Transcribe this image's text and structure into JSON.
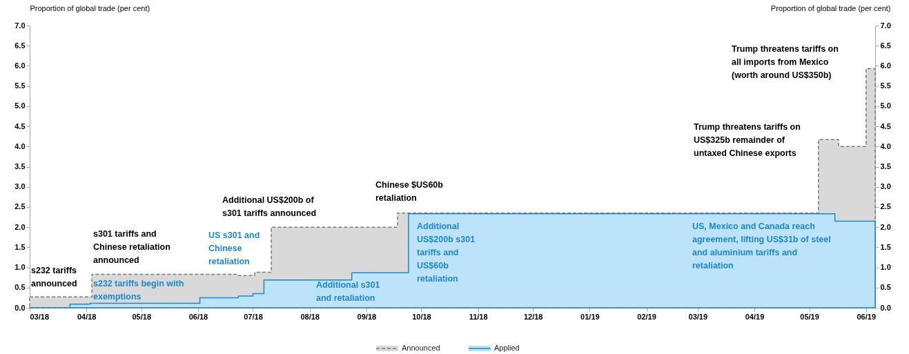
{
  "chart_data": {
    "type": "area",
    "ylabel": "Proportion of global trade (per cent)",
    "y2label": "Proportion of global trade (per cent)",
    "xlim": [
      "2018-03-01",
      "2019-06-06"
    ],
    "xticks": [
      {
        "value": "2018-03-01",
        "label": "03/18"
      },
      {
        "value": "2018-04-01",
        "label": "04/18"
      },
      {
        "value": "2018-05-01",
        "label": "05/18"
      },
      {
        "value": "2018-06-01",
        "label": "06/18"
      },
      {
        "value": "2018-07-01",
        "label": "07/18"
      },
      {
        "value": "2018-08-01",
        "label": "08/18"
      },
      {
        "value": "2018-09-01",
        "label": "09/18"
      },
      {
        "value": "2018-10-01",
        "label": "10/18"
      },
      {
        "value": "2018-11-01",
        "label": "11/18"
      },
      {
        "value": "2018-12-01",
        "label": "12/18"
      },
      {
        "value": "2019-01-01",
        "label": "01/19"
      },
      {
        "value": "2019-02-01",
        "label": "02/19"
      },
      {
        "value": "2019-03-01",
        "label": "03/19"
      },
      {
        "value": "2019-04-01",
        "label": "04/19"
      },
      {
        "value": "2019-05-01",
        "label": "05/19"
      },
      {
        "value": "2019-06-01",
        "label": "06/19"
      }
    ],
    "ylim": [
      0,
      7
    ],
    "yticks": [
      {
        "value": 0,
        "label": "0.0"
      },
      {
        "value": 0.5,
        "label": "0.5"
      },
      {
        "value": 1,
        "label": "1.0"
      },
      {
        "value": 1.5,
        "label": "1.5"
      },
      {
        "value": 2,
        "label": "2.0"
      },
      {
        "value": 2.5,
        "label": "2.5"
      },
      {
        "value": 3,
        "label": "3.0"
      },
      {
        "value": 3.5,
        "label": "3.5"
      },
      {
        "value": 4,
        "label": "4.0"
      },
      {
        "value": 4.5,
        "label": "4.5"
      },
      {
        "value": 5,
        "label": "5.0"
      },
      {
        "value": 5.5,
        "label": "5.5"
      },
      {
        "value": 6,
        "label": "6.0"
      },
      {
        "value": 6.5,
        "label": "6.5"
      },
      {
        "value": 7,
        "label": "7.0"
      }
    ],
    "y2lim": [
      0,
      7
    ],
    "y2ticks": [
      {
        "value": 0,
        "label": "0.0"
      },
      {
        "value": 0.5,
        "label": "0.5"
      },
      {
        "value": 1,
        "label": "1.0"
      },
      {
        "value": 1.5,
        "label": "1.5"
      },
      {
        "value": 2,
        "label": "2.0"
      },
      {
        "value": 2.5,
        "label": "2.5"
      },
      {
        "value": 3,
        "label": "3.0"
      },
      {
        "value": 3.5,
        "label": "3.5"
      },
      {
        "value": 4,
        "label": "4.0"
      },
      {
        "value": 4.5,
        "label": "4.5"
      },
      {
        "value": 5,
        "label": "5.0"
      },
      {
        "value": 5.5,
        "label": "5.5"
      },
      {
        "value": 6,
        "label": "6.0"
      },
      {
        "value": 6.5,
        "label": "6.5"
      },
      {
        "value": 7,
        "label": "7.0"
      }
    ],
    "legend": "bottom",
    "series": [
      {
        "name": "Announced",
        "line_style": "dashed",
        "color": "#d9d9d9",
        "x": [
          "2018-03-01",
          "2018-04-04",
          "2018-06-22",
          "2018-07-02",
          "2018-07-11",
          "2018-09-18",
          "2019-05-06",
          "2019-05-17",
          "2019-06-01",
          "2019-06-06"
        ],
        "values": [
          0.27,
          0.83,
          0.8,
          0.88,
          2.0,
          2.35,
          4.17,
          4.0,
          5.93,
          5.93
        ]
      },
      {
        "name": "Applied",
        "line_style": "solid",
        "color": "#bde3fa",
        "x": [
          "2018-03-01",
          "2018-03-23",
          "2018-04-03",
          "2018-06-02",
          "2018-06-23",
          "2018-07-01",
          "2018-07-07",
          "2018-08-24",
          "2018-09-24",
          "2019-05-15",
          "2019-06-06"
        ],
        "values": [
          0.0,
          0.09,
          0.11,
          0.25,
          0.29,
          0.35,
          0.69,
          0.87,
          2.33,
          2.15,
          2.15
        ]
      }
    ],
    "annotations": [
      "s232 tariffs\nannounced",
      "s301 tariffs and\nChinese retaliation\nannounced",
      "s232 tariffs begin with\nexemptions",
      "US s301 and\nChinese\nretaliation",
      "Additional US$200b of\ns301 tariffs announced",
      "Chinese $US60b\nretaliation",
      "Additional s301\nand retaliation",
      "Additional\nUS$200b s301\ntariffs and\nUS$60b\nretaliation",
      "US, Mexico and Canada reach\nagreement, lifting US$31b of steel\nand aluminium tariffs and\nretaliation",
      "Trump threatens tariffs on\nUS$325b remainder of\nuntaxed Chinese exports",
      "Trump threatens tariffs on\nall imports from Mexico\n(worth around US$350b)"
    ]
  }
}
